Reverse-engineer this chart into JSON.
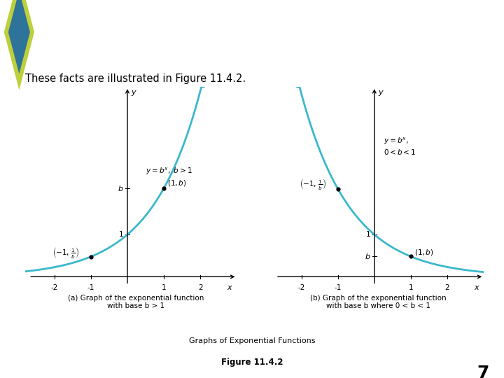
{
  "title": "Graphs of Exponential Functions",
  "subtitle": "These facts are illustrated in Figure 11.4.2.",
  "header_bg": "#2E7399",
  "header_text_color": "#FFFFFF",
  "diamond_outer": "#BDCF3A",
  "diamond_inner": "#2E7399",
  "background_color": "#FFFFFF",
  "curve_color": "#3BB8CC",
  "axis_color": "#000000",
  "caption_a": "(a) Graph of the exponential function\nwith base b > 1",
  "caption_b": "(b) Graph of the exponential function\nwith base b where 0 < b < 1",
  "figure_label": "Graphs of Exponential Functions",
  "figure_number": "Figure 11.4.2",
  "page_number": "7",
  "xmin": -2.8,
  "xmax": 3.0,
  "ymin": -0.25,
  "ymax": 4.5,
  "base_gt1": 2.1,
  "base_lt1": 0.48
}
